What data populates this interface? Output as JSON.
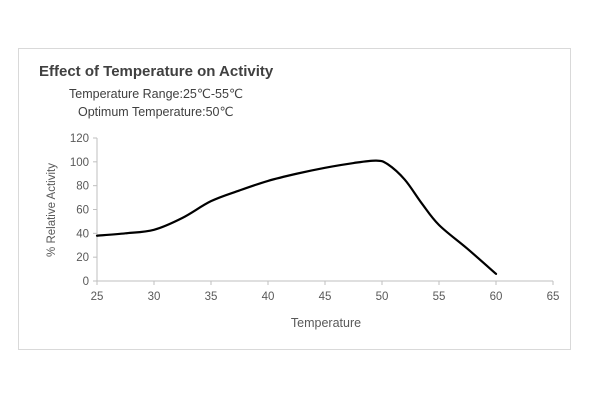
{
  "chart_data": {
    "type": "line",
    "title": "Effect of Temperature on Activity",
    "annotations": [
      "Temperature Range:25℃-55℃",
      "Optimum Temperature:50℃"
    ],
    "xlabel": "Temperature",
    "ylabel": "% Relative Activity",
    "xlim": [
      25,
      65
    ],
    "ylim": [
      0,
      120
    ],
    "x_ticks": [
      25,
      30,
      35,
      40,
      45,
      50,
      55,
      60,
      65
    ],
    "y_ticks": [
      0,
      20,
      40,
      60,
      80,
      100,
      120
    ],
    "grid": false,
    "legend": "none",
    "series": [
      {
        "x": [
          25,
          27.5,
          30,
          32.5,
          35,
          37.5,
          40,
          42.5,
          45,
          47.5,
          49.5,
          50.5,
          52,
          53.5,
          55,
          57.5,
          60
        ],
        "values": [
          38,
          40,
          43,
          53,
          67,
          76,
          84,
          90,
          95,
          99,
          101,
          98,
          85,
          65,
          47,
          27,
          6
        ]
      }
    ],
    "colors": {
      "line": "#000000",
      "axis": "#bfbfbf",
      "frame": "#d9d9d9"
    }
  }
}
